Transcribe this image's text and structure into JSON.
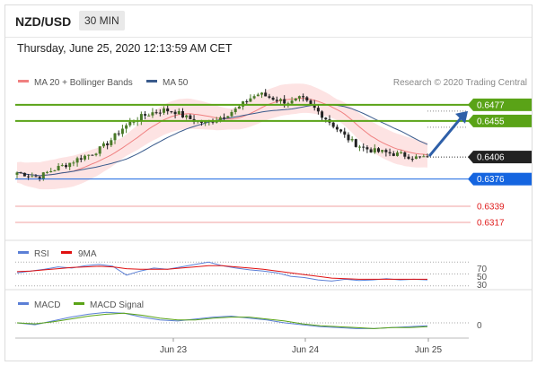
{
  "header": {
    "pair": "NZD/USD",
    "interval": "30 MIN",
    "datetime": "Thursday, June 25, 2020 12:13:59 AM CET"
  },
  "credit": "Research © 2020 Trading Central",
  "colors": {
    "candle_up": "#4a7a28",
    "candle_down": "#222222",
    "bollinger_fill": "#fde3e3",
    "ma20": "#f08080",
    "ma50": "#3a5b8c",
    "resistance": "#5aa317",
    "support": "#1565e0",
    "support_low": "#f2a0a0",
    "rsi": "#5b7fd6",
    "ma9": "#e01010",
    "macd": "#5b7fd6",
    "macd_signal": "#5aa317"
  },
  "chart_data": [
    {
      "type": "candlestick",
      "legend": [
        {
          "name": "MA 20 + Bollinger Bands",
          "color": "#f08080"
        },
        {
          "name": "MA 50",
          "color": "#3a5b8c"
        }
      ],
      "x_ticks": [
        "Jun 23",
        "Jun 24",
        "Jun 25"
      ],
      "ylim": [
        0.63,
        0.65
      ],
      "close_path": [
        0.6385,
        0.6382,
        0.6378,
        0.6386,
        0.6392,
        0.6398,
        0.6405,
        0.641,
        0.6418,
        0.643,
        0.6445,
        0.6455,
        0.6462,
        0.6467,
        0.647,
        0.6468,
        0.646,
        0.6455,
        0.6452,
        0.6458,
        0.6465,
        0.6472,
        0.6485,
        0.6492,
        0.6487,
        0.6483,
        0.648,
        0.6486,
        0.6475,
        0.6463,
        0.645,
        0.6436,
        0.6425,
        0.6418,
        0.6414,
        0.6412,
        0.641,
        0.6408,
        0.6405,
        0.6406
      ],
      "current_price": 0.6406,
      "levels": [
        {
          "value": 0.6477,
          "label": "0.6477",
          "kind": "resistance"
        },
        {
          "value": 0.6455,
          "label": "0.6455",
          "kind": "resistance"
        },
        {
          "value": 0.6406,
          "label": "0.6406",
          "kind": "current"
        },
        {
          "value": 0.6376,
          "label": "0.6376",
          "kind": "support"
        },
        {
          "value": 0.6339,
          "label": "0.6339",
          "kind": "support_low"
        },
        {
          "value": 0.6317,
          "label": "0.6317",
          "kind": "support_low"
        }
      ],
      "forecast_arrow": {
        "from": 0.6406,
        "to": 0.6455
      }
    },
    {
      "type": "line",
      "legend": [
        {
          "name": "RSI",
          "color": "#5b7fd6"
        },
        {
          "name": "9MA",
          "color": "#e01010"
        }
      ],
      "ylim": [
        25,
        75
      ],
      "y_ticks": [
        "70",
        "50",
        "30"
      ],
      "series": [
        {
          "name": "RSI",
          "values": [
            52,
            55,
            58,
            62,
            60,
            64,
            66,
            63,
            48,
            55,
            60,
            58,
            62,
            66,
            70,
            64,
            60,
            57,
            55,
            52,
            46,
            44,
            40,
            38,
            41,
            39,
            40,
            42,
            40,
            41,
            40
          ]
        },
        {
          "name": "9MA",
          "values": [
            54,
            55,
            57,
            59,
            61,
            62,
            63,
            62,
            59,
            58,
            58,
            58,
            60,
            62,
            64,
            64,
            62,
            60,
            58,
            55,
            52,
            49,
            46,
            43,
            42,
            41,
            41,
            41,
            41,
            41,
            41
          ]
        }
      ]
    },
    {
      "type": "line",
      "legend": [
        {
          "name": "MACD",
          "color": "#5b7fd6"
        },
        {
          "name": "MACD Signal",
          "color": "#5aa317"
        }
      ],
      "ylim": [
        -0.0015,
        0.0015
      ],
      "y_ticks": [
        "0"
      ],
      "series": [
        {
          "name": "MACD",
          "values": [
            0.0,
            -0.0002,
            0.0002,
            0.0006,
            0.0009,
            0.0011,
            0.001,
            0.0006,
            0.0003,
            0.0002,
            0.0004,
            0.0006,
            0.0007,
            0.0005,
            0.0003,
            0.0,
            -0.0002,
            -0.0004,
            -0.0005,
            -0.0006,
            -0.0006,
            -0.0005,
            -0.0004,
            -0.0003
          ]
        },
        {
          "name": "MACD Signal",
          "values": [
            0.0,
            -0.0001,
            0.0001,
            0.0004,
            0.0007,
            0.0009,
            0.001,
            0.0008,
            0.0005,
            0.0003,
            0.0003,
            0.0005,
            0.0006,
            0.0006,
            0.0004,
            0.0002,
            -0.0001,
            -0.0003,
            -0.0004,
            -0.0005,
            -0.0006,
            -0.0005,
            -0.0005,
            -0.0004
          ]
        }
      ]
    }
  ]
}
